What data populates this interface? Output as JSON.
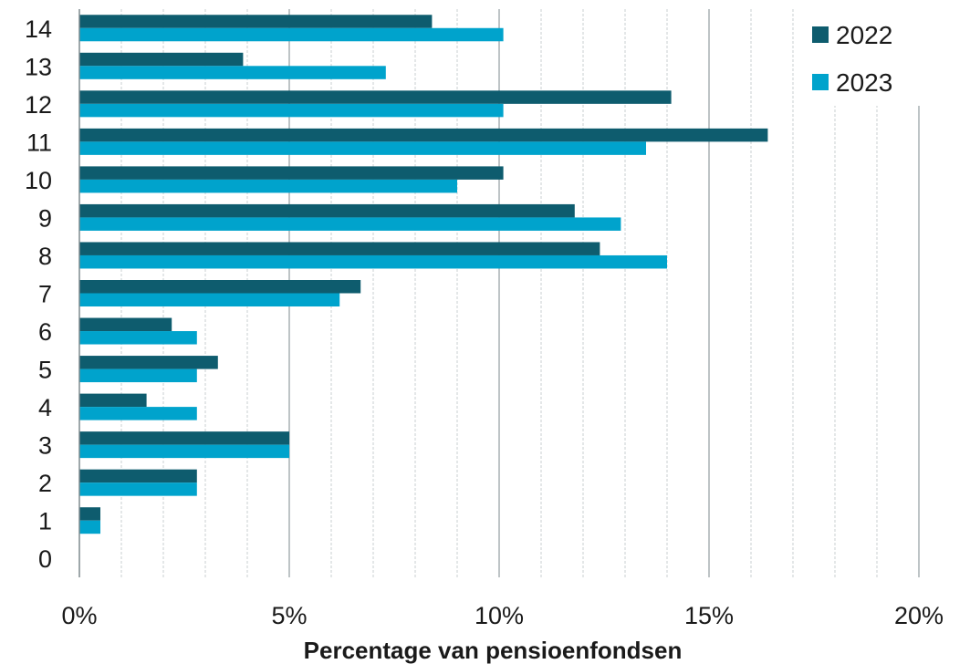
{
  "chart_data": {
    "type": "bar",
    "orientation": "horizontal",
    "categories": [
      "0",
      "1",
      "2",
      "3",
      "4",
      "5",
      "6",
      "7",
      "8",
      "9",
      "10",
      "11",
      "12",
      "13",
      "14"
    ],
    "series": [
      {
        "name": "2022",
        "color": "#0e5c6e",
        "values": [
          0,
          0.5,
          2.8,
          5.0,
          1.6,
          3.3,
          2.2,
          6.7,
          12.4,
          11.8,
          10.1,
          16.4,
          14.1,
          3.9,
          8.4
        ]
      },
      {
        "name": "2023",
        "color": "#00a3cc",
        "values": [
          0,
          0.5,
          2.8,
          5.0,
          2.8,
          2.8,
          2.8,
          6.2,
          14.0,
          12.9,
          9.0,
          13.5,
          10.1,
          7.3,
          10.1
        ]
      }
    ],
    "xlabel": "Percentage van pensioenfondsen",
    "ylabel": "",
    "xlim": [
      0,
      20
    ],
    "x_ticks": [
      {
        "value": 0,
        "label": "0%"
      },
      {
        "value": 5,
        "label": "5%"
      },
      {
        "value": 10,
        "label": "10%"
      },
      {
        "value": 15,
        "label": "15%"
      },
      {
        "value": 20,
        "label": "20%"
      }
    ],
    "minor_grid_step": 1,
    "grid": true,
    "legend_position": "top-right"
  }
}
